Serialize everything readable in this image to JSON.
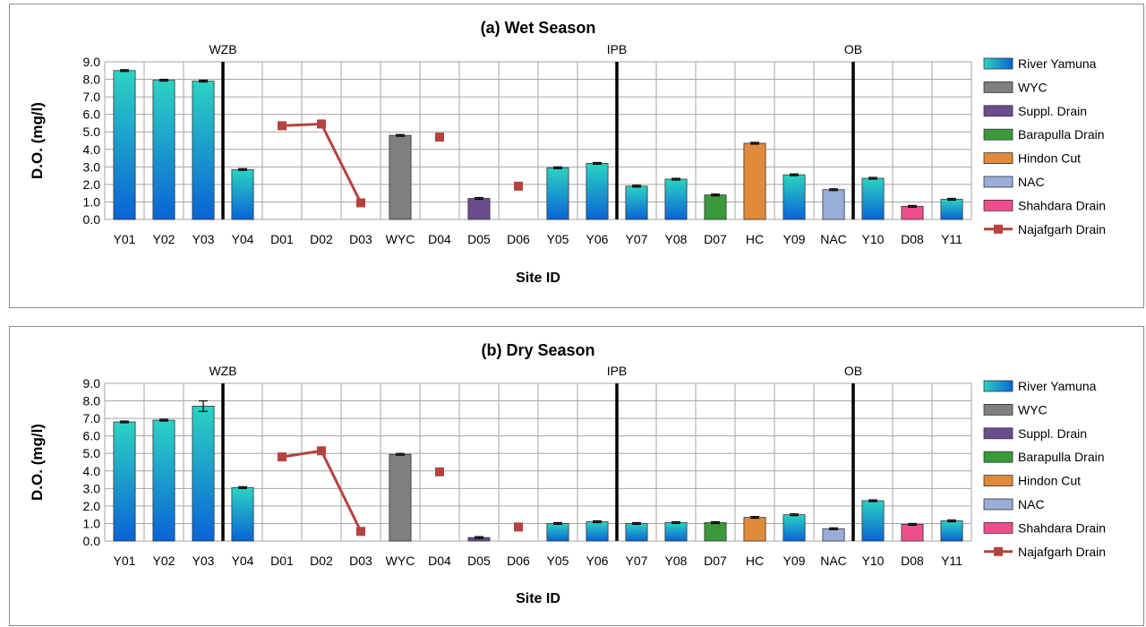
{
  "colors": {
    "River Yamuna": [
      "#2bd3c3",
      "#0a63d6"
    ],
    "WYC": [
      "#7f7f7f",
      "#7f7f7f"
    ],
    "Suppl. Drain": [
      "#6a4d8c",
      "#6a4d8c"
    ],
    "Barapulla Drain": [
      "#3a9a3a",
      "#3a9a3a"
    ],
    "Hindon Cut": [
      "#e08a3c",
      "#e08a3c"
    ],
    "NAC": [
      "#98aed6",
      "#98aed6"
    ],
    "Shahdara Drain": [
      "#ee4f8c",
      "#ee4f8c"
    ],
    "Najafgarh Drain": [
      "#b5423f",
      "#b5423f"
    ]
  },
  "legend_labels": [
    "River Yamuna",
    "WYC",
    "Suppl. Drain",
    "Barapulla Drain",
    "Hindon Cut",
    "NAC",
    "Shahdara Drain",
    "Najafgarh Drain"
  ],
  "chart_data": [
    {
      "type": "bar",
      "title": "(a) Wet Season",
      "xlabel": "Site ID",
      "ylabel": "D.O. (mg/l)",
      "ylim": [
        0,
        9
      ],
      "yticks": [
        "0.0",
        "1.0",
        "2.0",
        "3.0",
        "4.0",
        "5.0",
        "6.0",
        "7.0",
        "8.0",
        "9.0"
      ],
      "categories": [
        "Y01",
        "Y02",
        "Y03",
        "Y04",
        "D01",
        "D02",
        "D03",
        "WYC",
        "D04",
        "D05",
        "D06",
        "Y05",
        "Y06",
        "Y07",
        "Y08",
        "D07",
        "HC",
        "Y09",
        "NAC",
        "Y10",
        "D08",
        "Y11"
      ],
      "boundaries": [
        {
          "label": "WZB",
          "after": "Y03"
        },
        {
          "label": "IPB",
          "after": "Y06"
        },
        {
          "label": "OB",
          "after": "NAC"
        }
      ],
      "grid": true,
      "legend": "right",
      "series": [
        {
          "name": "River Yamuna",
          "points": [
            [
              "Y01",
              8.5,
              0.05
            ],
            [
              "Y02",
              7.95,
              0.05
            ],
            [
              "Y03",
              7.9,
              0.05
            ],
            [
              "Y04",
              2.85,
              0.05
            ],
            [
              "Y05",
              2.95,
              0.05
            ],
            [
              "Y06",
              3.2,
              0.05
            ],
            [
              "Y07",
              1.9,
              0.05
            ],
            [
              "Y08",
              2.3,
              0.05
            ],
            [
              "Y09",
              2.55,
              0.05
            ],
            [
              "Y10",
              2.35,
              0.05
            ],
            [
              "Y11",
              1.15,
              0.05
            ]
          ]
        },
        {
          "name": "WYC",
          "points": [
            [
              "WYC",
              4.8,
              0.05
            ]
          ]
        },
        {
          "name": "Suppl. Drain",
          "points": [
            [
              "D05",
              1.2,
              0.05
            ]
          ]
        },
        {
          "name": "Barapulla Drain",
          "points": [
            [
              "D07",
              1.4,
              0.05
            ]
          ]
        },
        {
          "name": "Hindon Cut",
          "points": [
            [
              "HC",
              4.35,
              0.05
            ]
          ]
        },
        {
          "name": "NAC",
          "points": [
            [
              "NAC",
              1.7,
              0.05
            ]
          ]
        },
        {
          "name": "Shahdara Drain",
          "points": [
            [
              "D08",
              0.75,
              0.05
            ]
          ]
        },
        {
          "name": "Najafgarh Drain",
          "line": [
            [
              "D01",
              5.35
            ],
            [
              "D02",
              5.45
            ],
            [
              "D03",
              0.95
            ]
          ],
          "markers": [
            [
              "D04",
              4.7
            ],
            [
              "D06",
              1.9
            ]
          ]
        }
      ]
    },
    {
      "type": "bar",
      "title": "(b) Dry Season",
      "xlabel": "Site ID",
      "ylabel": "D.O. (mg/l)",
      "ylim": [
        0,
        9
      ],
      "yticks": [
        "0.0",
        "1.0",
        "2.0",
        "3.0",
        "4.0",
        "5.0",
        "6.0",
        "7.0",
        "8.0",
        "9.0"
      ],
      "categories": [
        "Y01",
        "Y02",
        "Y03",
        "Y04",
        "D01",
        "D02",
        "D03",
        "WYC",
        "D04",
        "D05",
        "D06",
        "Y05",
        "Y06",
        "Y07",
        "Y08",
        "D07",
        "HC",
        "Y09",
        "NAC",
        "Y10",
        "D08",
        "Y11"
      ],
      "boundaries": [
        {
          "label": "WZB",
          "after": "Y03"
        },
        {
          "label": "IPB",
          "after": "Y06"
        },
        {
          "label": "OB",
          "after": "NAC"
        }
      ],
      "grid": true,
      "legend": "right",
      "series": [
        {
          "name": "River Yamuna",
          "points": [
            [
              "Y01",
              6.8,
              0.05
            ],
            [
              "Y02",
              6.9,
              0.05
            ],
            [
              "Y03",
              7.7,
              0.3
            ],
            [
              "Y04",
              3.05,
              0.05
            ],
            [
              "Y05",
              1.0,
              0.05
            ],
            [
              "Y06",
              1.1,
              0.05
            ],
            [
              "Y07",
              1.0,
              0.05
            ],
            [
              "Y08",
              1.05,
              0.05
            ],
            [
              "Y09",
              1.5,
              0.05
            ],
            [
              "Y10",
              2.3,
              0.05
            ],
            [
              "Y11",
              1.15,
              0.05
            ]
          ]
        },
        {
          "name": "WYC",
          "points": [
            [
              "WYC",
              4.95,
              0.05
            ]
          ]
        },
        {
          "name": "Suppl. Drain",
          "points": [
            [
              "D05",
              0.2,
              0.05
            ]
          ]
        },
        {
          "name": "Barapulla Drain",
          "points": [
            [
              "D07",
              1.05,
              0.05
            ]
          ]
        },
        {
          "name": "Hindon Cut",
          "points": [
            [
              "HC",
              1.35,
              0.05
            ]
          ]
        },
        {
          "name": "NAC",
          "points": [
            [
              "NAC",
              0.7,
              0.05
            ]
          ]
        },
        {
          "name": "Shahdara Drain",
          "points": [
            [
              "D08",
              0.95,
              0.05
            ]
          ]
        },
        {
          "name": "Najafgarh Drain",
          "line": [
            [
              "D01",
              4.8
            ],
            [
              "D02",
              5.15
            ],
            [
              "D03",
              0.55
            ]
          ],
          "markers": [
            [
              "D04",
              3.95
            ],
            [
              "D06",
              0.8
            ]
          ]
        }
      ]
    }
  ]
}
